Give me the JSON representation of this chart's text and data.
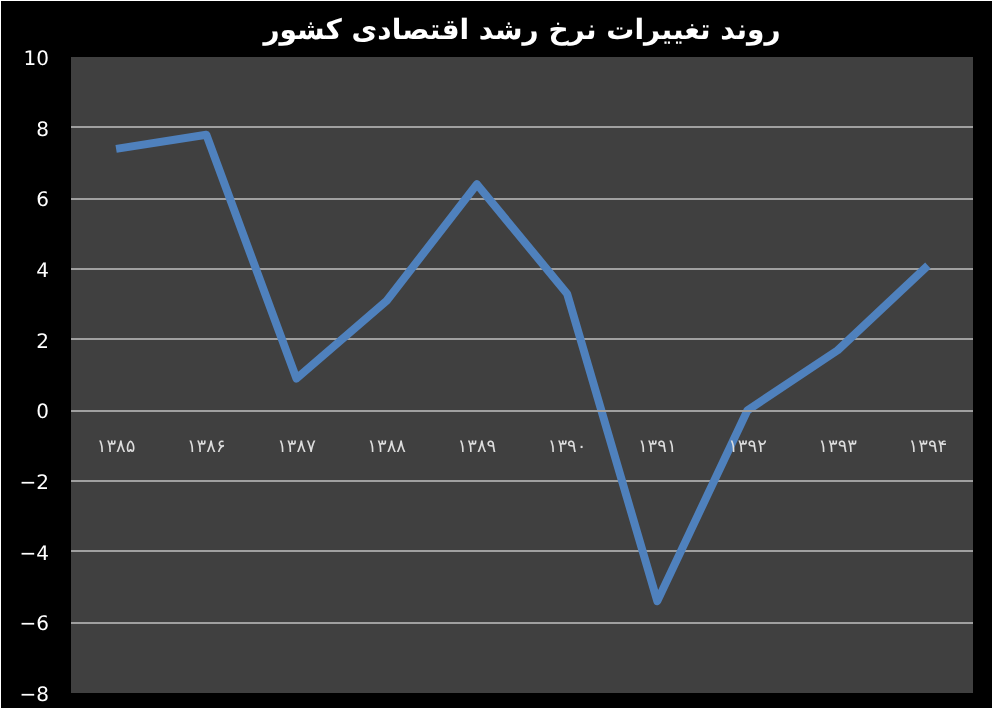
{
  "chart_data": {
    "type": "line",
    "title": "روند تغییرات نرخ رشد اقتصادی کشور",
    "categories": [
      "۱۳۸۵",
      "۱۳۸۶",
      "۱۳۸۷",
      "۱۳۸۸",
      "۱۳۸۹",
      "۱۳۹۰",
      "۱۳۹۱",
      "۱۳۹۲",
      "۱۳۹۳",
      "۱۳۹۴"
    ],
    "series": [
      {
        "color": "#4f81bd",
        "values": [
          7.4,
          7.8,
          0.9,
          3.1,
          6.4,
          3.3,
          -5.4,
          0.0,
          1.7,
          4.1
        ]
      }
    ],
    "ylim": [
      -8,
      10
    ],
    "yticks": [
      -8,
      -6,
      -4,
      -2,
      0,
      2,
      4,
      6,
      8,
      10
    ],
    "grid": "y",
    "marker": "none",
    "line_style": "solid"
  }
}
